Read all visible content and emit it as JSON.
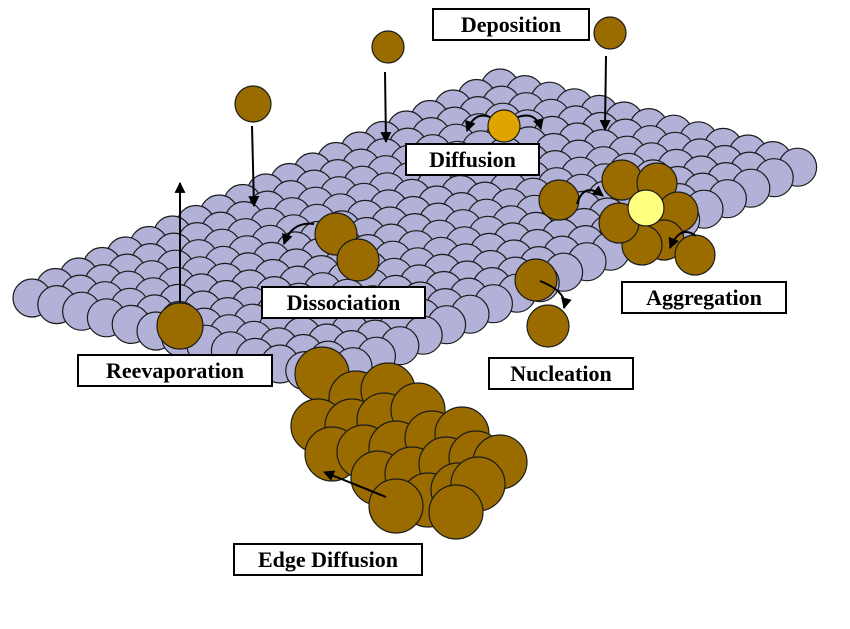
{
  "labels": {
    "deposition": "Deposition",
    "diffusion": "Diffusion",
    "aggregation": "Aggregation",
    "dissociation": "Dissociation",
    "nucleation": "Nucleation",
    "reevaporation": "Reevaporation",
    "edge_diffusion": "Edge Diffusion"
  },
  "colors": {
    "substrate_atom": "#b2b2d8",
    "substrate_outline": "#1b1b1b",
    "adatom": "#9a6c00",
    "diffusing_adatom": "#e0a400",
    "nucleus_center": "#ffff80",
    "arrow": "#000000"
  }
}
